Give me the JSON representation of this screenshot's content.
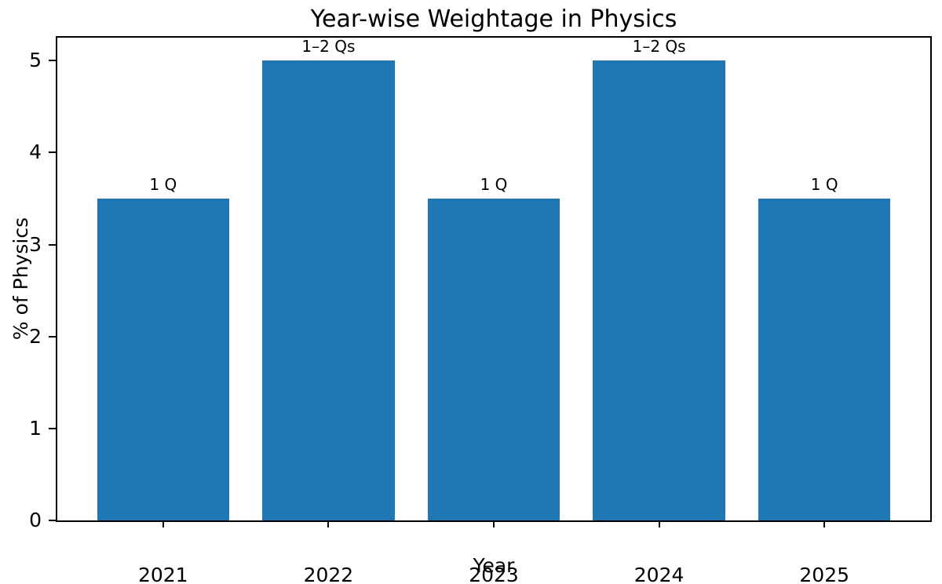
{
  "chart_data": {
    "type": "bar",
    "title": "Year-wise Weightage in Physics",
    "xlabel": "Year",
    "ylabel": "% of Physics",
    "categories": [
      "2021",
      "2022",
      "2023",
      "2024",
      "2025"
    ],
    "values": [
      3.5,
      5,
      3.5,
      5,
      3.5
    ],
    "bar_labels": [
      "1 Q",
      "1–2 Qs",
      "1 Q",
      "1–2 Qs",
      "1 Q"
    ],
    "yticks": [
      0,
      1,
      2,
      3,
      4,
      5
    ],
    "ylim": [
      0,
      5.25
    ],
    "bar_color": "#1f77b4",
    "axis_color": "#000000",
    "background_color": "#ffffff",
    "grid": false,
    "legend": null
  }
}
